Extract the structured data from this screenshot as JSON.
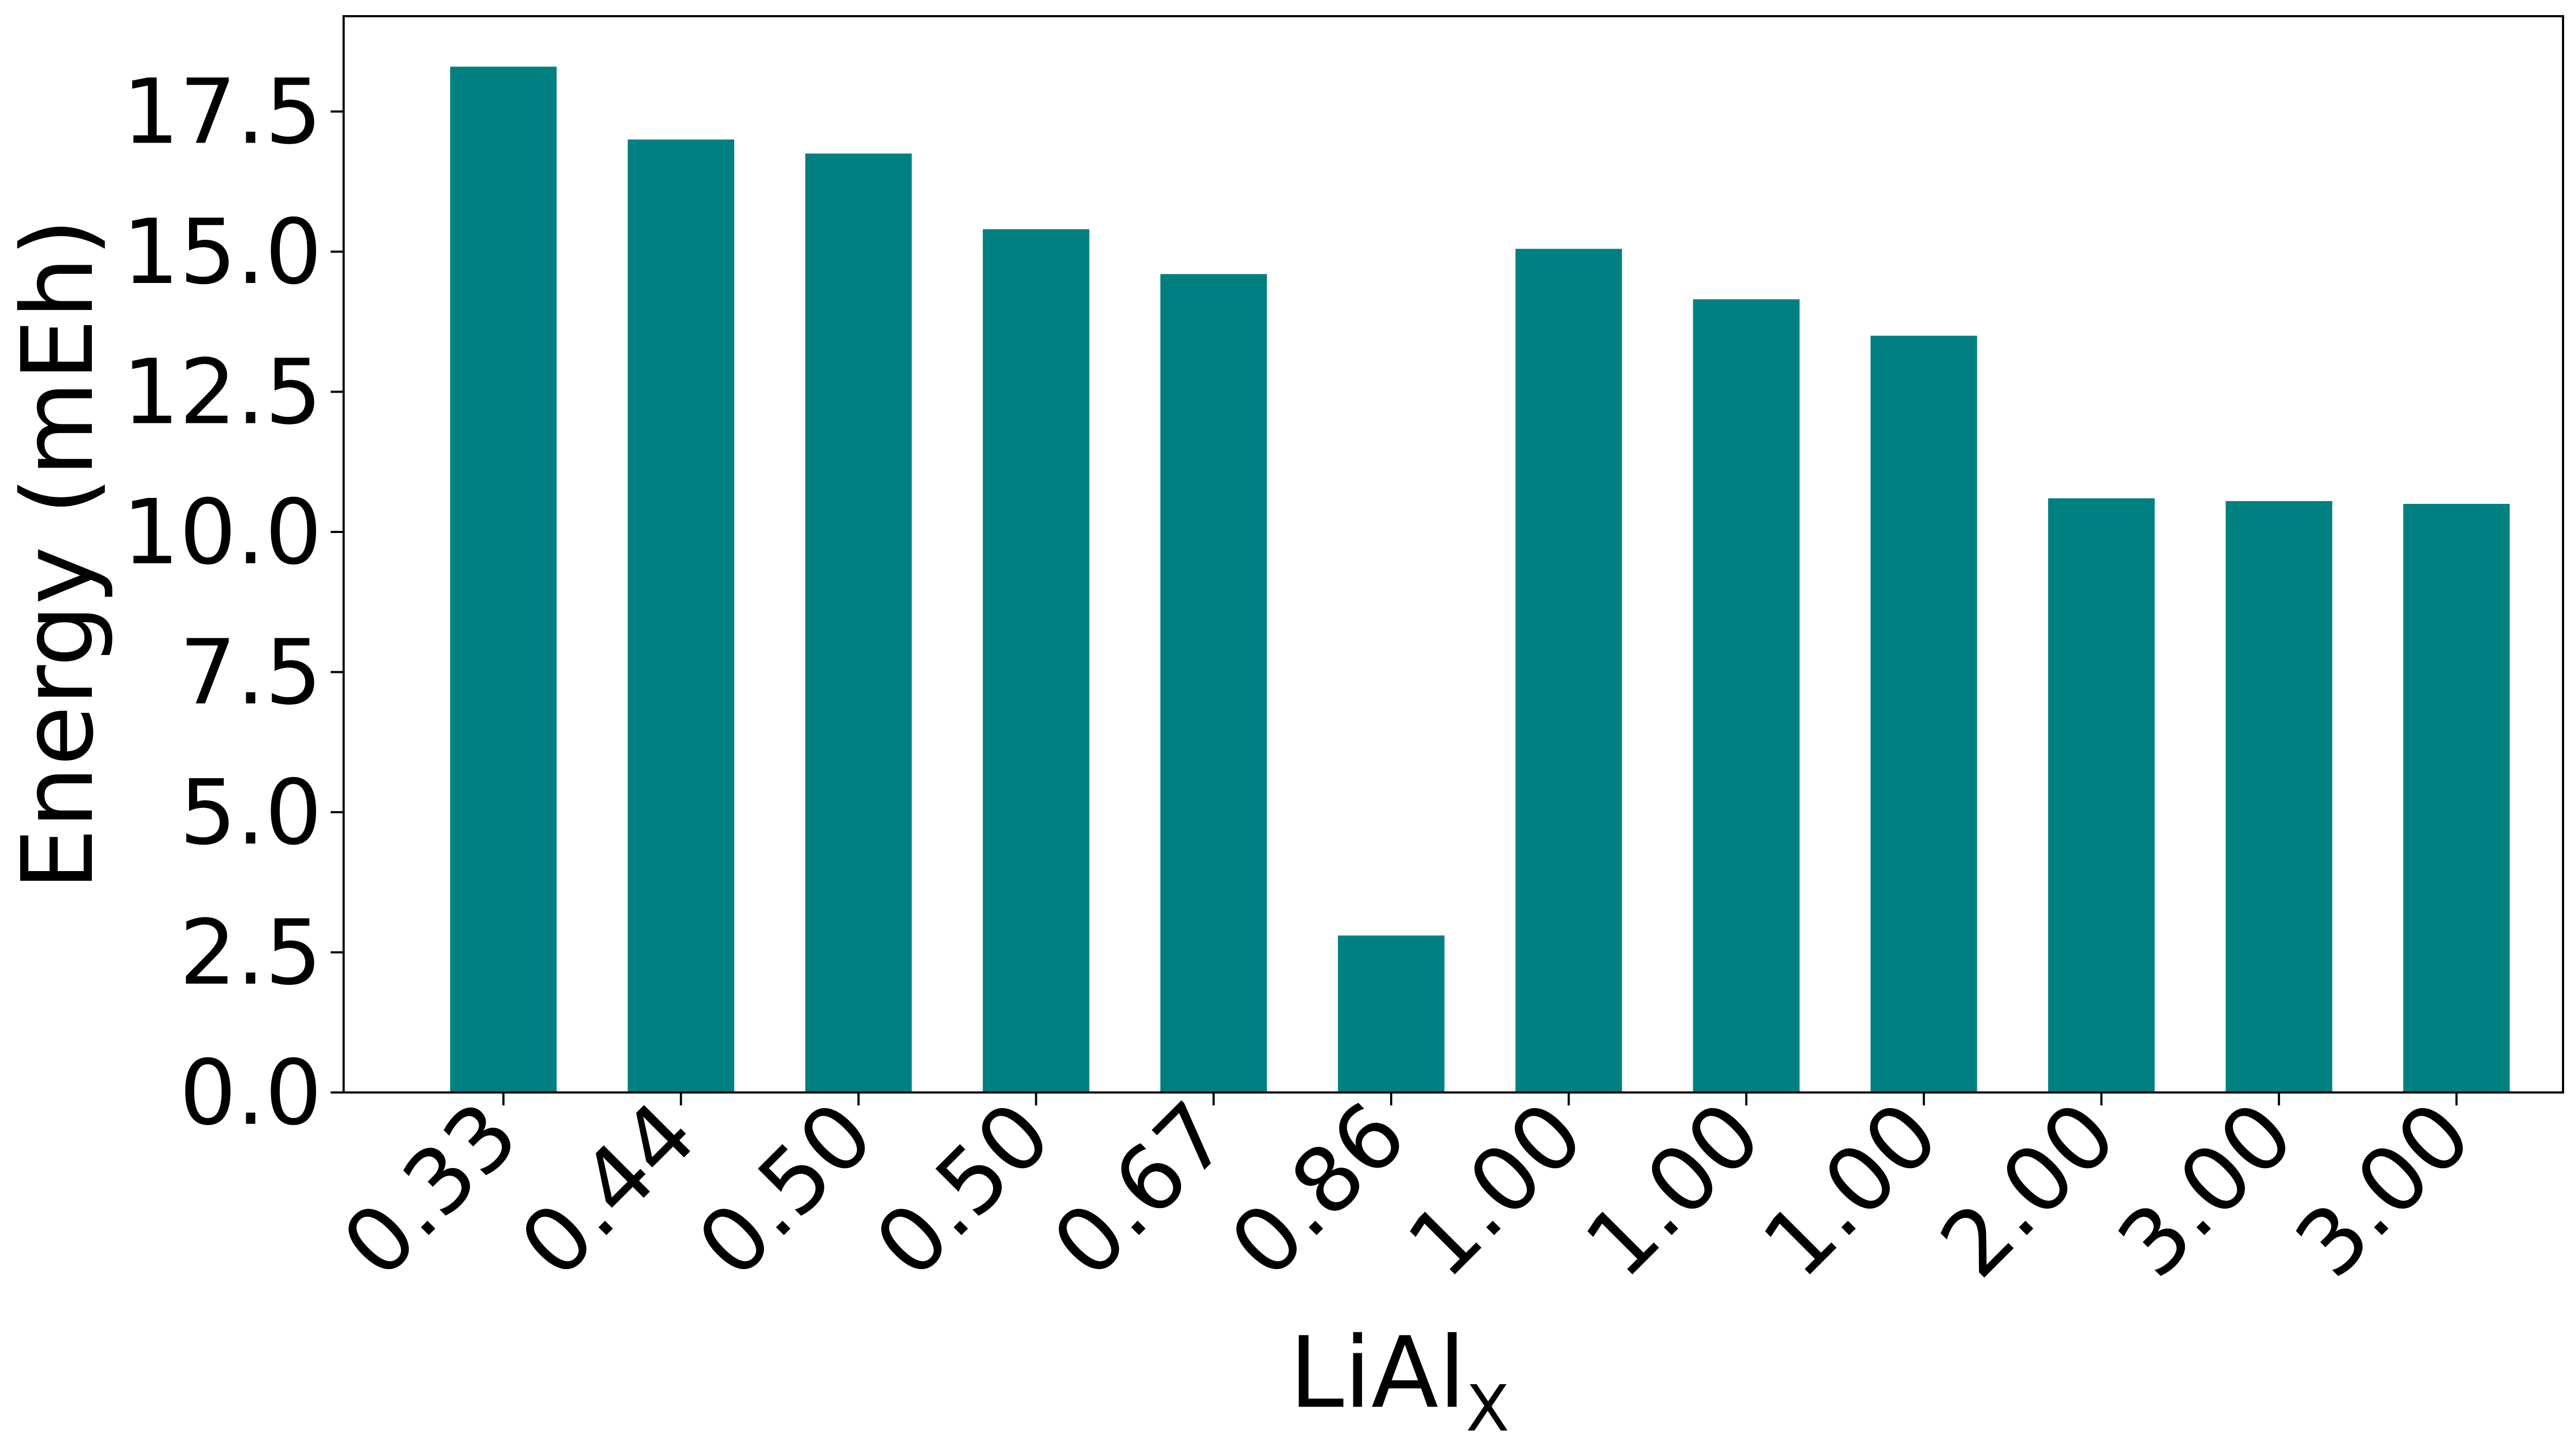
{
  "chart_data": {
    "type": "bar",
    "title": "",
    "xlabel": "LiAl",
    "xlabel_subscript": "X",
    "ylabel": "Energy (mEh)",
    "categories": [
      "0.33",
      "0.44",
      "0.50",
      "0.50",
      "0.67",
      "0.86",
      "1.00",
      "1.00",
      "1.00",
      "2.00",
      "3.00",
      "3.00"
    ],
    "values": [
      18.3,
      17.0,
      16.75,
      15.4,
      14.6,
      2.8,
      15.05,
      14.15,
      13.5,
      10.6,
      10.55,
      10.5
    ],
    "ylim": [
      0,
      19.2
    ],
    "yticks": [
      "0.0",
      "2.5",
      "5.0",
      "7.5",
      "10.0",
      "12.5",
      "15.0",
      "17.5"
    ],
    "bar_color": "#008080",
    "grid": false,
    "legend": "none"
  }
}
